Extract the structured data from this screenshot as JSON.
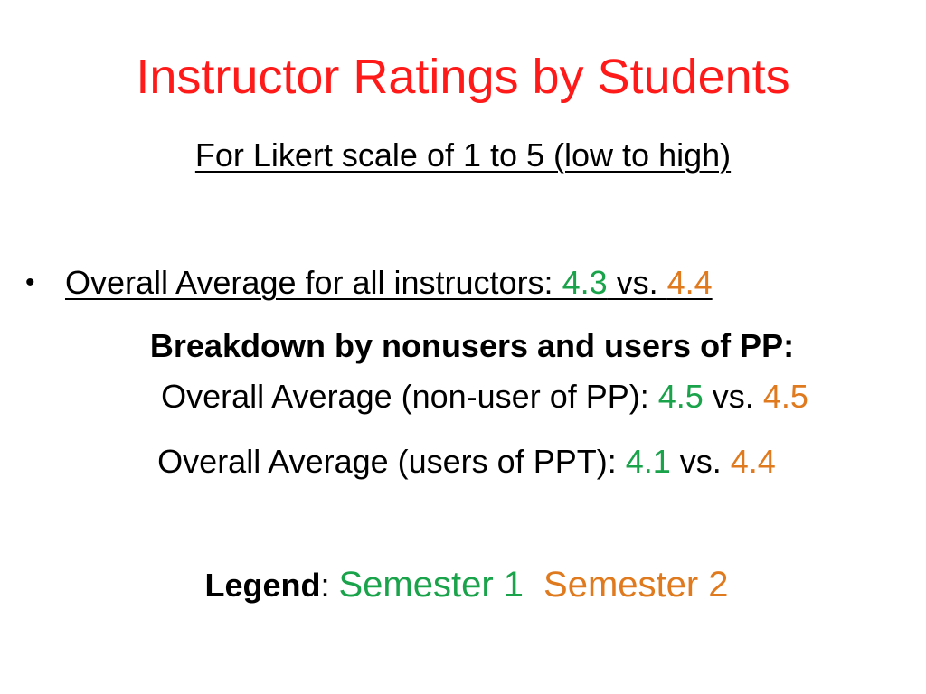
{
  "slide": {
    "title": "Instructor Ratings by Students",
    "subtitle": "For Likert scale of 1 to 5 (low to high)"
  },
  "overall": {
    "label": "Overall Average for all instructors: ",
    "semester1_value": "4.3",
    "vs": " vs. ",
    "semester2_value": "4.4"
  },
  "breakdown": {
    "heading": "Breakdown by nonusers and users of PP:",
    "nonuser": {
      "label": "Overall Average (non-user of PP): ",
      "semester1_value": "4.5",
      "vs": " vs. ",
      "semester2_value": "4.5"
    },
    "users": {
      "label": "Overall Average (users of PPT): ",
      "semester1_value": "4.1",
      "vs": " vs. ",
      "semester2_value": "4.4"
    }
  },
  "legend": {
    "label": "Legend",
    "separator": ": ",
    "semester1": "Semester 1",
    "semester2": "Semester 2"
  },
  "colors": {
    "title": "#ff1a1a",
    "semester1": "#1aa34a",
    "semester2": "#e07a1f"
  },
  "icons": {
    "bullet": "bullet-dot-icon"
  }
}
